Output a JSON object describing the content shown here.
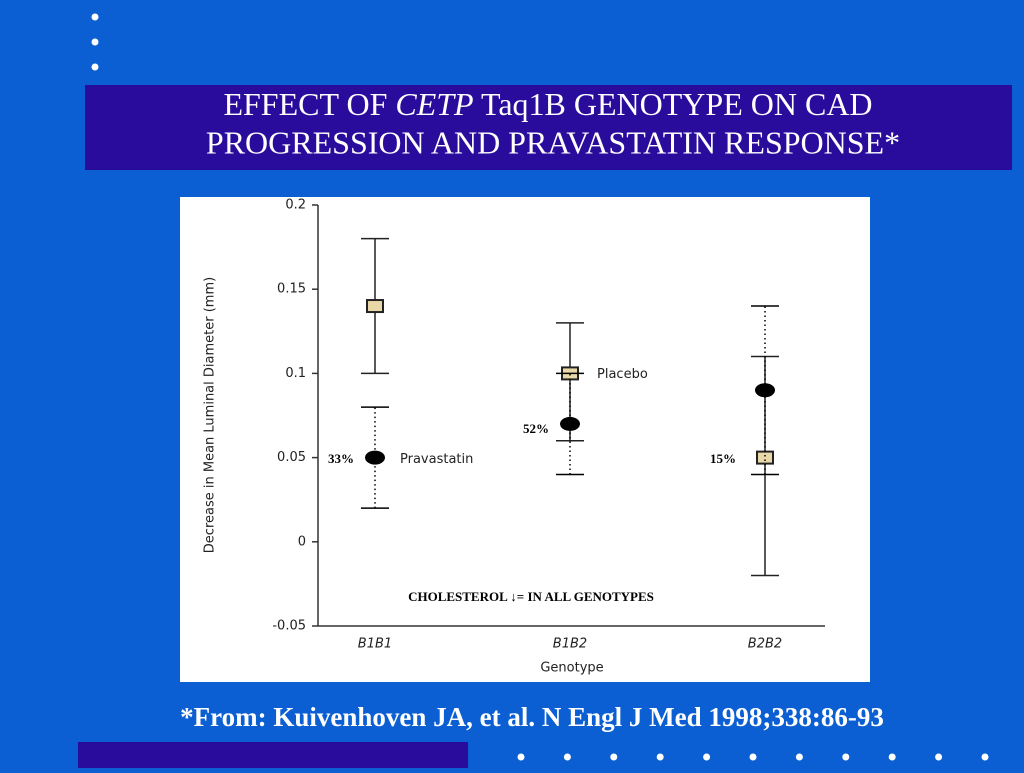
{
  "title_parts": [
    "EFFECT OF ",
    "CETP",
    " Taq1B GENOTYPE ON CAD",
    "PROGRESSION AND PRAVASTATIN RESPONSE*"
  ],
  "footnote": "*From: Kuivenhoven JA, et al. N Engl J Med 1998;338:86-93",
  "chart_data": {
    "type": "errorbar",
    "categories": [
      "B1B1",
      "B1B2",
      "B2B2"
    ],
    "x_label": "Genotype",
    "y_label": "Decrease in Mean Luminal Diameter (mm)",
    "ylim": [
      -0.05,
      0.2
    ],
    "yticks": [
      -0.05,
      0,
      0.05,
      0.1,
      0.15,
      0.2
    ],
    "series": [
      {
        "name": "Placebo",
        "color": "#222222",
        "values": [
          0.14,
          0.1,
          0.05
        ],
        "lower": [
          0.1,
          0.06,
          -0.02
        ],
        "upper": [
          0.18,
          0.13,
          0.11
        ]
      },
      {
        "name": "Pravastatin",
        "color": "#000000",
        "values": [
          0.05,
          0.07,
          0.09
        ],
        "lower": [
          0.02,
          0.04,
          0.04
        ],
        "upper": [
          0.08,
          0.1,
          0.14
        ]
      }
    ],
    "annotations": [
      "33%",
      "52%",
      "15%",
      "CHOLESTEROL ↓= IN ALL GENOTYPES"
    ]
  }
}
